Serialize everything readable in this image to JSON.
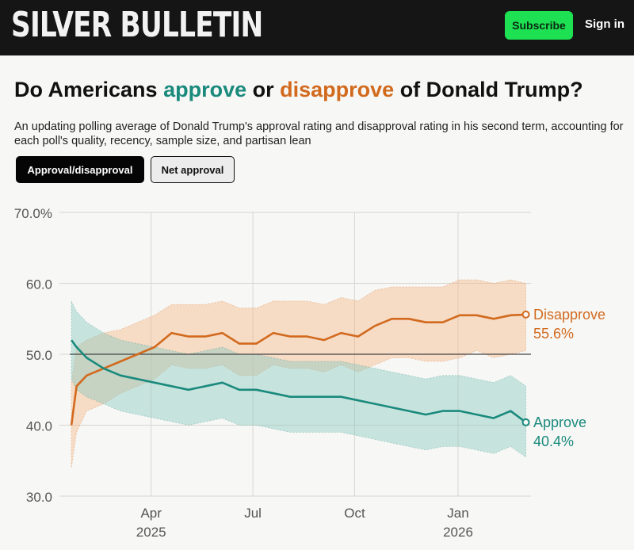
{
  "header": {
    "logo_text": "SILVER BULLETIN",
    "subscribe_label": "Subscribe",
    "signin_label": "Sign in"
  },
  "headline": {
    "part1": "Do Americans ",
    "approve_word": "approve",
    "part2": " or ",
    "disapprove_word": "disapprove",
    "part3": " of Donald Trump?"
  },
  "subtitle": "An updating polling average of Donald Trump's approval rating and disapproval rating in his second term, accounting for each poll's quality, recency, sample size, and partisan lean",
  "tabs": {
    "active_label": "Approval/disapproval",
    "inactive_label": "Net approval"
  },
  "colors": {
    "approve": "#1a8a7d",
    "disapprove": "#d26a1e",
    "approve_band": "#8cc9c0",
    "disapprove_band": "#f3b88c"
  },
  "chart_data": {
    "type": "line",
    "title": "Do Americans approve or disapprove of Donald Trump?",
    "xlabel": "",
    "ylabel": "",
    "ylim": [
      30,
      70
    ],
    "yticks": [
      {
        "value": 70,
        "label": "70.0%"
      },
      {
        "value": 60,
        "label": "60.0"
      },
      {
        "value": 50,
        "label": "50.0"
      },
      {
        "value": 40,
        "label": "40.0"
      },
      {
        "value": 30,
        "label": "30.0"
      }
    ],
    "xlim": [
      0,
      13.6
    ],
    "xticks": [
      {
        "value": 2.4,
        "label": "Apr",
        "year": "2025"
      },
      {
        "value": 5.4,
        "label": "Jul",
        "year": ""
      },
      {
        "value": 8.4,
        "label": "Oct",
        "year": ""
      },
      {
        "value": 11.45,
        "label": "Jan",
        "year": "2026"
      }
    ],
    "reference_line": 50,
    "x": [
      0.05,
      0.2,
      0.5,
      1,
      1.5,
      2,
      2.5,
      3,
      3.5,
      4,
      4.5,
      5,
      5.5,
      6,
      6.5,
      7,
      7.5,
      8,
      8.5,
      9,
      9.5,
      10,
      10.5,
      11,
      11.5,
      12,
      12.5,
      13,
      13.45
    ],
    "series": [
      {
        "name": "Disapprove",
        "label": "Disapprove",
        "last_label": "55.6%",
        "values": [
          40,
          45.5,
          47,
          48,
          49,
          50,
          51,
          53,
          52.5,
          52.5,
          53,
          51.5,
          51.5,
          53,
          52.5,
          52.5,
          52,
          53,
          52.5,
          54,
          55,
          55,
          54.5,
          54.5,
          55.5,
          55.5,
          55,
          55.5,
          55.6
        ],
        "upper": [
          46,
          51,
          52,
          53,
          53.5,
          54.5,
          55.5,
          57,
          57,
          57,
          57.5,
          56.5,
          56.5,
          57.5,
          57.5,
          57.5,
          57,
          58,
          57.5,
          59,
          59.5,
          59.5,
          59.5,
          59.5,
          60.5,
          60.5,
          60,
          60.5,
          60
        ],
        "lower": [
          34,
          39,
          42,
          43,
          44.5,
          45.5,
          46.5,
          48.5,
          48,
          48,
          48.5,
          47,
          47,
          48.5,
          48,
          48,
          47.5,
          48.5,
          47.5,
          48.5,
          49.5,
          49.5,
          49,
          49,
          49.5,
          50.5,
          49.5,
          50,
          50.5
        ]
      },
      {
        "name": "Approve",
        "label": "Approve",
        "last_label": "40.4%",
        "values": [
          52,
          51,
          49.5,
          48,
          47,
          46.5,
          46,
          45.5,
          45,
          45.5,
          46,
          45,
          45,
          44.5,
          44,
          44,
          44,
          44,
          43.5,
          43,
          42.5,
          42,
          41.5,
          42,
          42,
          41.5,
          41,
          42,
          40.4
        ],
        "upper": [
          57.5,
          56,
          54.5,
          53,
          52,
          51.5,
          51,
          50.5,
          50,
          50.5,
          51,
          50,
          50,
          49.5,
          49,
          49,
          49,
          49,
          48.5,
          48,
          47.5,
          47,
          46.5,
          47,
          47,
          46.5,
          46,
          47,
          45.5
        ],
        "lower": [
          46.5,
          45,
          44,
          43,
          42,
          41.5,
          41,
          40.5,
          40,
          40.5,
          41,
          40,
          40,
          39.5,
          39,
          39,
          39,
          39,
          38.5,
          38,
          37.5,
          37,
          36.5,
          37,
          37,
          36.5,
          36,
          37,
          35.5
        ]
      }
    ]
  }
}
